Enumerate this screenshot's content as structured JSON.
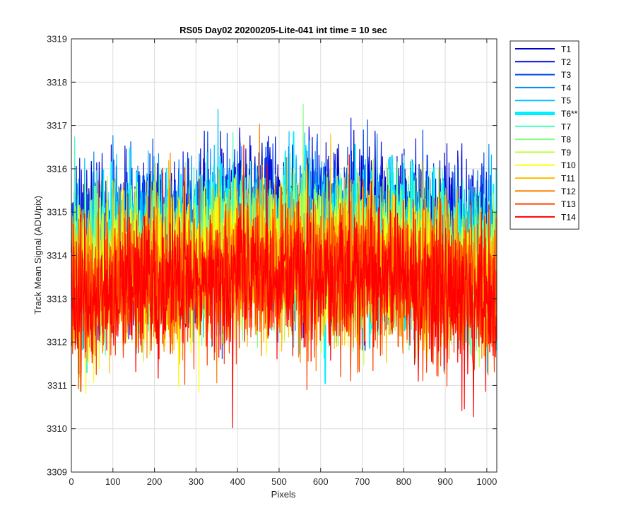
{
  "chart_data": {
    "type": "line",
    "title": "RS05 Day02 20200205-Lite-041 int time = 10 sec",
    "xlabel": "Pixels",
    "ylabel": "Track Mean Signal (ADU/pix)",
    "xlim": [
      0,
      1024
    ],
    "ylim": [
      3309,
      3319
    ],
    "xticks": [
      0,
      100,
      200,
      300,
      400,
      500,
      600,
      700,
      800,
      900,
      1000
    ],
    "yticks": [
      3309,
      3310,
      3311,
      3312,
      3313,
      3314,
      3315,
      3316,
      3317,
      3318,
      3319
    ],
    "grid": true,
    "legend_position": "outside-top-right",
    "x_points": 1024,
    "series": [
      {
        "name": "T1",
        "color": "#0000c8",
        "mean_value": 3314.6,
        "highlighted": false
      },
      {
        "name": "T2",
        "color": "#0010e0",
        "mean_value": 3314.5,
        "highlighted": false
      },
      {
        "name": "T3",
        "color": "#0048f0",
        "mean_value": 3314.4,
        "highlighted": false
      },
      {
        "name": "T4",
        "color": "#0088f8",
        "mean_value": 3314.3,
        "highlighted": false
      },
      {
        "name": "T5",
        "color": "#00c0ff",
        "mean_value": 3314.2,
        "highlighted": false
      },
      {
        "name": "T6**",
        "color": "#00f0ff",
        "mean_value": 3314.1,
        "highlighted": true
      },
      {
        "name": "T7",
        "color": "#40ffc0",
        "mean_value": 3314.0,
        "highlighted": false
      },
      {
        "name": "T8",
        "color": "#80ff80",
        "mean_value": 3313.9,
        "highlighted": false
      },
      {
        "name": "T9",
        "color": "#c0ff40",
        "mean_value": 3313.8,
        "highlighted": false
      },
      {
        "name": "T10",
        "color": "#ffff00",
        "mean_value": 3313.7,
        "highlighted": false
      },
      {
        "name": "T11",
        "color": "#ffc000",
        "mean_value": 3313.6,
        "highlighted": false
      },
      {
        "name": "T12",
        "color": "#ff8000",
        "mean_value": 3313.5,
        "highlighted": false
      },
      {
        "name": "T13",
        "color": "#ff4000",
        "mean_value": 3313.4,
        "highlighted": false
      },
      {
        "name": "T14",
        "color": "#ff0000",
        "mean_value": 3313.3,
        "highlighted": false
      }
    ]
  }
}
